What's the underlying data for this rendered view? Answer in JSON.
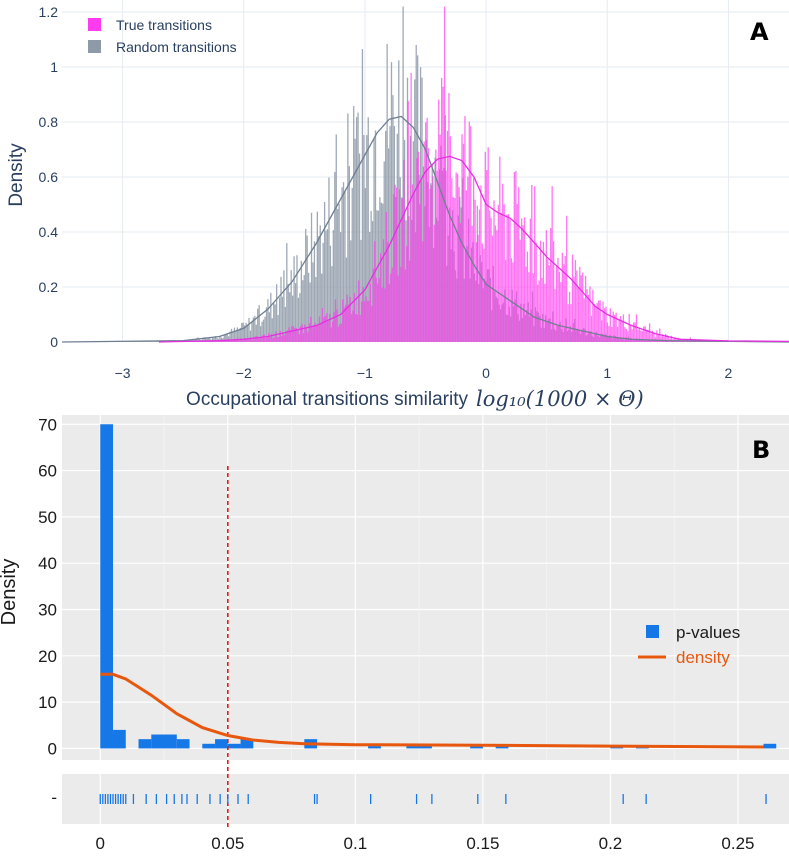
{
  "chart_data": [
    {
      "panel": "A",
      "type": "histogram",
      "xlabel_text": "Occupational transitions similarity",
      "xlabel_math": "log₁₀(1000 × Θ)",
      "ylabel": "Density",
      "xlim": [
        -3.5,
        2.5
      ],
      "ylim": [
        0,
        1.2
      ],
      "x_ticks": [
        "−3",
        "−2",
        "−1",
        "0",
        "1",
        "2"
      ],
      "x_tick_values": [
        -3,
        -2,
        -1,
        0,
        1,
        2
      ],
      "y_ticks": [
        "0",
        "0.2",
        "0.4",
        "0.6",
        "0.8",
        "1",
        "1.2"
      ],
      "y_tick_values": [
        0,
        0.2,
        0.4,
        0.6,
        0.8,
        1.0,
        1.2
      ],
      "series": [
        {
          "name": "Random transitions",
          "color": "#8e9aa8",
          "line_color": "#6f7f93",
          "kde": {
            "x": [
              -3.5,
              -2.5,
              -2.2,
              -2.0,
              -1.8,
              -1.6,
              -1.4,
              -1.2,
              -1.0,
              -0.9,
              -0.8,
              -0.7,
              -0.6,
              -0.5,
              -0.4,
              -0.3,
              -0.2,
              -0.1,
              0.0,
              0.2,
              0.4,
              0.6,
              0.8,
              1.0,
              1.2,
              1.5,
              2.0,
              2.5
            ],
            "y": [
              0.0,
              0.005,
              0.02,
              0.05,
              0.12,
              0.22,
              0.36,
              0.52,
              0.68,
              0.76,
              0.81,
              0.82,
              0.78,
              0.7,
              0.58,
              0.46,
              0.36,
              0.28,
              0.21,
              0.15,
              0.09,
              0.06,
              0.04,
              0.02,
              0.01,
              0.005,
              0.002,
              0.0
            ]
          }
        },
        {
          "name": "True transitions",
          "color": "#ff3bf0",
          "line_color": "#e62ee0",
          "kde": {
            "x": [
              -2.7,
              -2.2,
              -2.0,
              -1.8,
              -1.6,
              -1.4,
              -1.2,
              -1.0,
              -0.8,
              -0.6,
              -0.5,
              -0.4,
              -0.3,
              -0.2,
              -0.1,
              0.0,
              0.1,
              0.2,
              0.3,
              0.4,
              0.5,
              0.6,
              0.7,
              0.8,
              0.9,
              1.0,
              1.1,
              1.2,
              1.4,
              1.6,
              2.0,
              2.5
            ],
            "y": [
              0.0,
              0.005,
              0.01,
              0.02,
              0.04,
              0.06,
              0.1,
              0.19,
              0.35,
              0.54,
              0.62,
              0.665,
              0.675,
              0.66,
              0.6,
              0.5,
              0.47,
              0.45,
              0.41,
              0.36,
              0.31,
              0.27,
              0.23,
              0.18,
              0.13,
              0.1,
              0.08,
              0.06,
              0.03,
              0.01,
              0.004,
              0.002
            ]
          }
        }
      ]
    },
    {
      "panel": "B",
      "type": "histogram",
      "ylabel": "Density",
      "xlim": [
        -0.015,
        0.27
      ],
      "ylim": [
        -2.5,
        72
      ],
      "threshold": 0.05,
      "x_ticks": [
        "0",
        "0.05",
        "0.1",
        "0.15",
        "0.2",
        "0.25"
      ],
      "x_tick_values": [
        0,
        0.05,
        0.1,
        0.15,
        0.2,
        0.25
      ],
      "y_ticks": [
        "0",
        "10",
        "20",
        "30",
        "40",
        "50",
        "60",
        "70"
      ],
      "y_tick_values": [
        0,
        10,
        20,
        30,
        40,
        50,
        60,
        70
      ],
      "series": [
        {
          "name": "p-values",
          "color": "#1677e6",
          "bars": [
            [
              0.0,
              0.005,
              70
            ],
            [
              0.005,
              0.01,
              4
            ],
            [
              0.015,
              0.02,
              2
            ],
            [
              0.02,
              0.03,
              3
            ],
            [
              0.03,
              0.035,
              2
            ],
            [
              0.04,
              0.045,
              1
            ],
            [
              0.045,
              0.05,
              2
            ],
            [
              0.05,
              0.055,
              1
            ],
            [
              0.055,
              0.06,
              2
            ],
            [
              0.08,
              0.085,
              2
            ],
            [
              0.105,
              0.11,
              0.5
            ],
            [
              0.12,
              0.13,
              0.5
            ],
            [
              0.145,
              0.15,
              0.5
            ],
            [
              0.155,
              0.16,
              0.5
            ],
            [
              0.2,
              0.205,
              0.5
            ],
            [
              0.21,
              0.215,
              0.5
            ],
            [
              0.26,
              0.265,
              1
            ]
          ]
        },
        {
          "name": "density",
          "color": "#e8570e",
          "kde": {
            "x": [
              0.0,
              0.005,
              0.01,
              0.02,
              0.03,
              0.04,
              0.05,
              0.06,
              0.07,
              0.08,
              0.1,
              0.15,
              0.2,
              0.26
            ],
            "y": [
              16,
              16,
              15,
              11.5,
              7.5,
              4.5,
              2.8,
              1.8,
              1.3,
              1.0,
              0.8,
              0.7,
              0.5,
              0.3
            ]
          }
        }
      ],
      "rug": [
        0.0,
        0.001,
        0.002,
        0.003,
        0.004,
        0.005,
        0.006,
        0.007,
        0.008,
        0.009,
        0.01,
        0.013,
        0.018,
        0.022,
        0.026,
        0.029,
        0.032,
        0.034,
        0.038,
        0.043,
        0.047,
        0.05,
        0.054,
        0.058,
        0.084,
        0.085,
        0.106,
        0.124,
        0.13,
        0.148,
        0.159,
        0.205,
        0.214,
        0.261
      ],
      "rug_tick_label": "-"
    }
  ],
  "panel_labels": {
    "a": "A",
    "b": "B"
  }
}
